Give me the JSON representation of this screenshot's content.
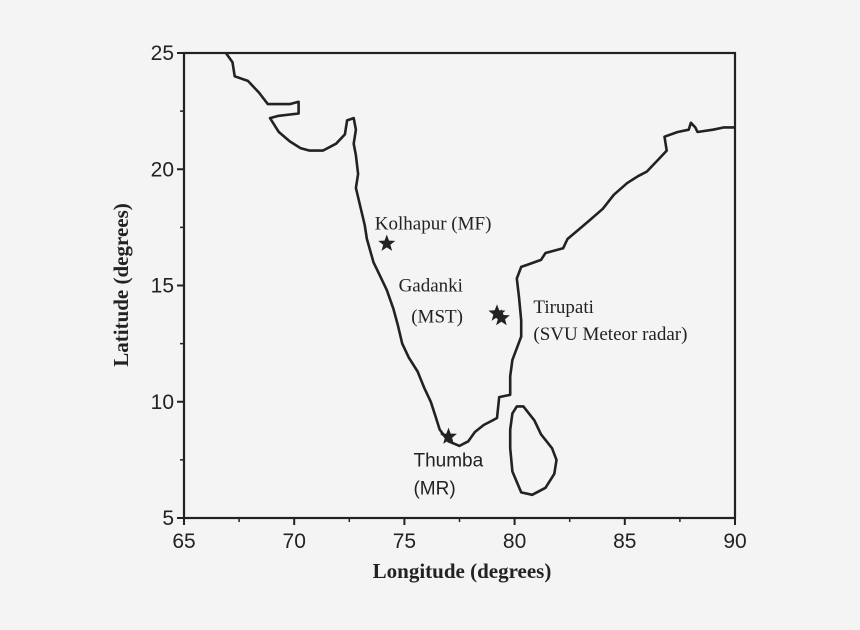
{
  "chart_data": {
    "type": "map",
    "xlabel": "Longitude (degrees)",
    "ylabel": "Latitude (degrees)",
    "xlim": [
      65,
      90
    ],
    "ylim": [
      5,
      25
    ],
    "xticks": [
      65,
      70,
      75,
      80,
      85,
      90
    ],
    "yticks": [
      5,
      10,
      15,
      20,
      25
    ],
    "grid": false,
    "line_color": "#222222",
    "background": "#f4f4f4",
    "sites": [
      {
        "lines": [
          "Kolhapur (MF)"
        ],
        "lon": 74.2,
        "lat": 16.8,
        "marker": "star-icon",
        "label_anchor": "top-right"
      },
      {
        "lines": [
          "Gadanki",
          "(MST)"
        ],
        "lon": 79.2,
        "lat": 13.8,
        "marker": "star-icon",
        "label_anchor": "left"
      },
      {
        "lines": [
          "Tirupati",
          "(SVU Meteor radar)"
        ],
        "lon": 79.4,
        "lat": 13.6,
        "marker": "star-icon",
        "label_anchor": "right"
      },
      {
        "lines": [
          "Thumba",
          "(MR)"
        ],
        "lon": 77.0,
        "lat": 8.5,
        "marker": "star-icon",
        "label_anchor": "bottom"
      }
    ],
    "coastline": [
      [
        66.9,
        25
      ],
      [
        67.2,
        24.6
      ],
      [
        67.3,
        24.0
      ],
      [
        67.9,
        23.8
      ],
      [
        68.4,
        23.3
      ],
      [
        68.8,
        22.8
      ],
      [
        69.8,
        22.8
      ],
      [
        70.2,
        22.9
      ],
      [
        70.2,
        22.4
      ],
      [
        69.3,
        22.3
      ],
      [
        68.9,
        22.2
      ],
      [
        69.3,
        21.6
      ],
      [
        69.8,
        21.2
      ],
      [
        70.3,
        20.9
      ],
      [
        70.7,
        20.8
      ],
      [
        71.3,
        20.8
      ],
      [
        71.9,
        21.1
      ],
      [
        72.3,
        21.5
      ],
      [
        72.4,
        22.1
      ],
      [
        72.7,
        22.2
      ],
      [
        72.8,
        21.7
      ],
      [
        72.7,
        21.1
      ],
      [
        72.8,
        20.6
      ],
      [
        72.9,
        19.8
      ],
      [
        72.8,
        19.2
      ],
      [
        73.0,
        18.4
      ],
      [
        73.2,
        17.6
      ],
      [
        73.3,
        17.0
      ],
      [
        73.6,
        16.0
      ],
      [
        73.9,
        15.4
      ],
      [
        74.2,
        14.8
      ],
      [
        74.5,
        14.0
      ],
      [
        74.7,
        13.3
      ],
      [
        74.9,
        12.5
      ],
      [
        75.2,
        11.9
      ],
      [
        75.6,
        11.3
      ],
      [
        75.9,
        10.6
      ],
      [
        76.2,
        10.0
      ],
      [
        76.4,
        9.4
      ],
      [
        76.6,
        8.8
      ],
      [
        77.0,
        8.3
      ],
      [
        77.5,
        8.1
      ],
      [
        77.9,
        8.3
      ],
      [
        78.2,
        8.7
      ],
      [
        78.6,
        9.0
      ],
      [
        79.0,
        9.2
      ],
      [
        79.2,
        9.3
      ],
      [
        79.3,
        10.2
      ],
      [
        79.8,
        10.3
      ],
      [
        79.8,
        11.1
      ],
      [
        79.9,
        11.8
      ],
      [
        80.3,
        12.8
      ],
      [
        80.3,
        13.5
      ],
      [
        80.2,
        14.5
      ],
      [
        80.1,
        15.3
      ],
      [
        80.3,
        15.8
      ],
      [
        80.6,
        15.9
      ],
      [
        81.2,
        16.1
      ],
      [
        81.4,
        16.4
      ],
      [
        82.2,
        16.6
      ],
      [
        82.4,
        17.0
      ],
      [
        82.9,
        17.4
      ],
      [
        83.4,
        17.8
      ],
      [
        84.0,
        18.3
      ],
      [
        84.5,
        18.9
      ],
      [
        85.1,
        19.4
      ],
      [
        85.6,
        19.7
      ],
      [
        86.0,
        19.9
      ],
      [
        86.5,
        20.4
      ],
      [
        86.9,
        20.8
      ],
      [
        86.8,
        21.4
      ],
      [
        87.4,
        21.6
      ],
      [
        87.9,
        21.7
      ],
      [
        88.0,
        22.0
      ],
      [
        88.2,
        21.8
      ],
      [
        88.3,
        21.6
      ],
      [
        89.0,
        21.7
      ],
      [
        89.5,
        21.8
      ],
      [
        90.0,
        21.8
      ]
    ],
    "sri_lanka": [
      [
        80.1,
        9.8
      ],
      [
        79.9,
        9.5
      ],
      [
        79.8,
        8.8
      ],
      [
        79.8,
        8.0
      ],
      [
        79.9,
        7.0
      ],
      [
        80.3,
        6.1
      ],
      [
        80.8,
        6.0
      ],
      [
        81.4,
        6.3
      ],
      [
        81.8,
        6.9
      ],
      [
        81.9,
        7.5
      ],
      [
        81.7,
        8.0
      ],
      [
        81.2,
        8.6
      ],
      [
        80.9,
        9.2
      ],
      [
        80.4,
        9.8
      ],
      [
        80.1,
        9.8
      ]
    ]
  }
}
